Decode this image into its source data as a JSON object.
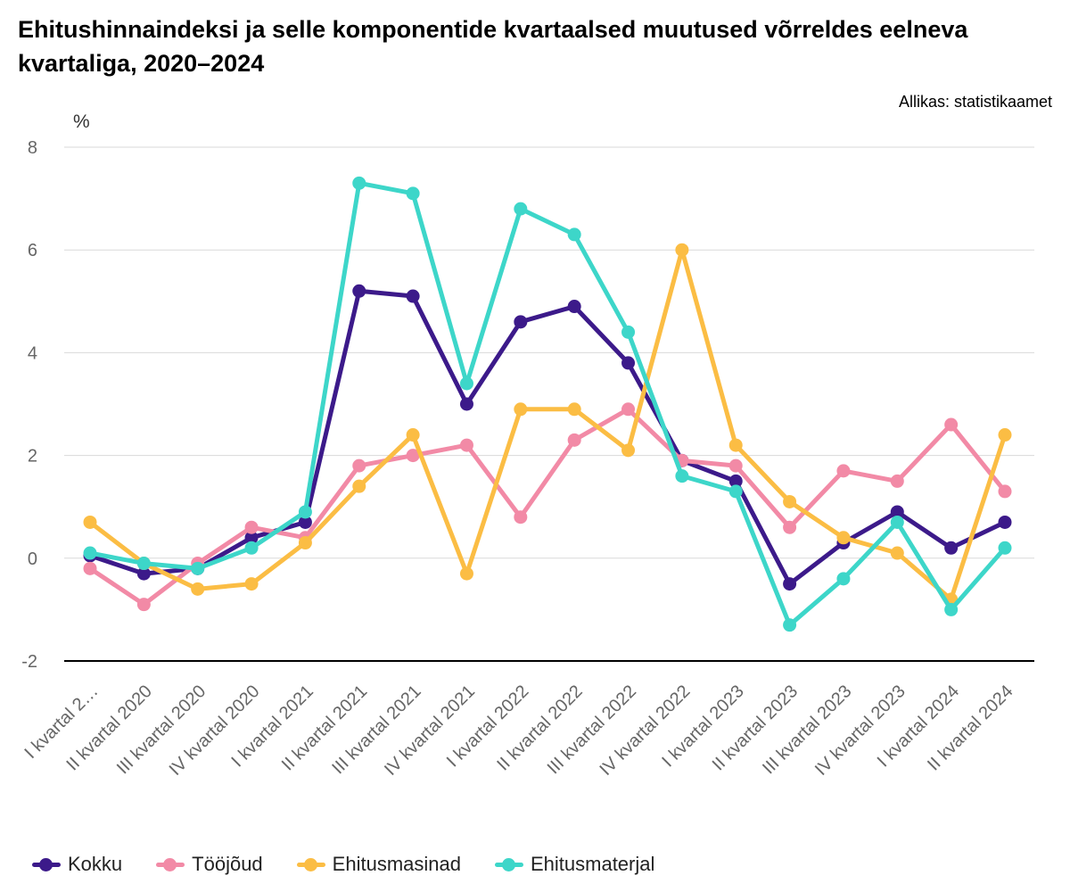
{
  "title": "Ehitushinnaindeksi ja selle komponentide kvartaalsed muutused võrreldes eelneva kvartaliga, 2020–2024",
  "source": "Allikas: statistikaamet",
  "chart_data": {
    "type": "line",
    "ylabel": "%",
    "ylim": [
      -2,
      8
    ],
    "yticks": [
      -2,
      0,
      2,
      4,
      6,
      8
    ],
    "grid": true,
    "legend_position": "bottom-left",
    "categories": [
      "I kvartal 2…",
      "II kvartal 2020",
      "III kvartal 2020",
      "IV kvartal 2020",
      "I kvartal 2021",
      "II kvartal 2021",
      "III kvartal 2021",
      "IV kvartal 2021",
      "I kvartal 2022",
      "II kvartal 2022",
      "III kvartal 2022",
      "IV kvartal 2022",
      "I kvartal 2023",
      "II kvartal 2023",
      "III kvartal 2023",
      "IV kvartal 2023",
      "I kvartal 2024",
      "II kvartal 2024"
    ],
    "series": [
      {
        "name": "Kokku",
        "color": "#3c1a8a",
        "values": [
          0.05,
          -0.3,
          -0.2,
          0.4,
          0.7,
          5.2,
          5.1,
          3.0,
          4.6,
          4.9,
          3.8,
          1.9,
          1.5,
          -0.5,
          0.3,
          0.9,
          0.2,
          0.7
        ]
      },
      {
        "name": "Tööjõud",
        "color": "#f28aa6",
        "values": [
          -0.2,
          -0.9,
          -0.1,
          0.6,
          0.4,
          1.8,
          2.0,
          2.2,
          0.8,
          2.3,
          2.9,
          1.9,
          1.8,
          0.6,
          1.7,
          1.5,
          2.6,
          1.3
        ]
      },
      {
        "name": "Ehitusmasinad",
        "color": "#fbbd44",
        "values": [
          0.7,
          -0.1,
          -0.6,
          -0.5,
          0.3,
          1.4,
          2.4,
          -0.3,
          2.9,
          2.9,
          2.1,
          6.0,
          2.2,
          1.1,
          0.4,
          0.1,
          -0.8,
          2.4
        ]
      },
      {
        "name": "Ehitusmaterjal",
        "color": "#3dd6c9",
        "values": [
          0.1,
          -0.1,
          -0.2,
          0.2,
          0.9,
          7.3,
          7.1,
          3.4,
          6.8,
          6.3,
          4.4,
          1.6,
          1.3,
          -1.3,
          -0.4,
          0.7,
          -1.0,
          0.2
        ]
      }
    ]
  }
}
